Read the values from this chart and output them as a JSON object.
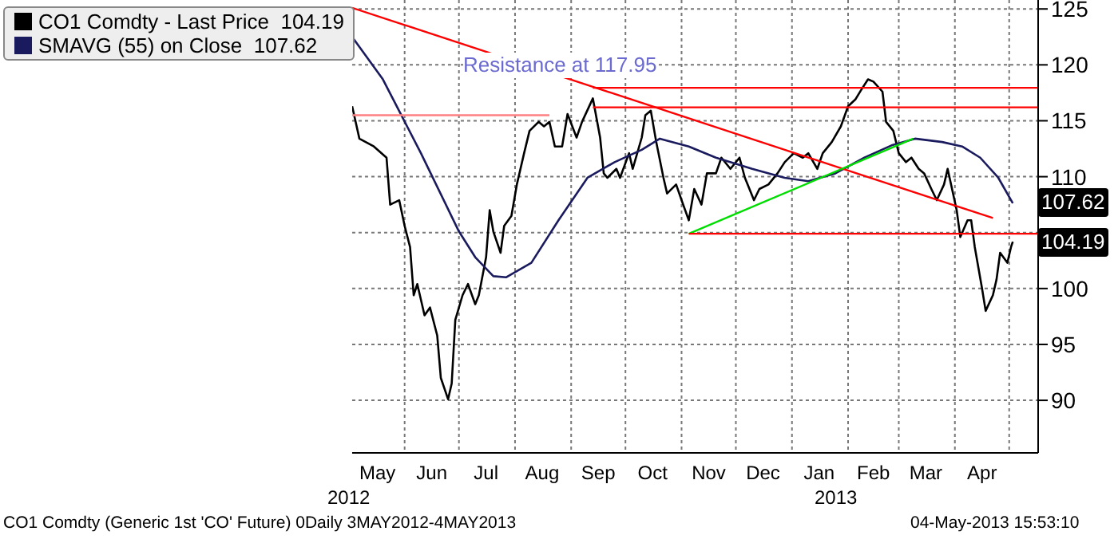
{
  "chart_data": {
    "type": "line",
    "legend": "top left",
    "grid": true,
    "xlim": [
      "2012-05-03",
      "2013-05-17"
    ],
    "xticks": [
      {
        "value": "2012-05-17",
        "label": "May"
      },
      {
        "value": "2012-06-01",
        "label": null
      },
      {
        "value": "2012-06-16",
        "label": "Jun"
      },
      {
        "value": "2012-07-01",
        "label": null
      },
      {
        "value": "2012-07-16",
        "label": "Jul"
      },
      {
        "value": "2012-08-01",
        "label": null
      },
      {
        "value": "2012-08-16",
        "label": "Aug"
      },
      {
        "value": "2012-09-01",
        "label": null
      },
      {
        "value": "2012-09-16",
        "label": "Sep"
      },
      {
        "value": "2012-10-01",
        "label": null
      },
      {
        "value": "2012-10-16",
        "label": "Oct"
      },
      {
        "value": "2012-11-01",
        "label": null
      },
      {
        "value": "2012-11-16",
        "label": "Nov"
      },
      {
        "value": "2012-12-01",
        "label": null
      },
      {
        "value": "2012-12-16",
        "label": "Dec"
      },
      {
        "value": "2013-01-01",
        "label": null
      },
      {
        "value": "2013-01-16",
        "label": "Jan"
      },
      {
        "value": "2013-02-01",
        "label": null
      },
      {
        "value": "2013-02-15",
        "label": "Feb"
      },
      {
        "value": "2013-03-01",
        "label": null
      },
      {
        "value": "2013-03-16",
        "label": "Mar"
      },
      {
        "value": "2013-04-01",
        "label": null
      },
      {
        "value": "2013-04-16",
        "label": "Apr"
      },
      {
        "value": "2013-05-01",
        "label": null
      }
    ],
    "ylim": [
      85.3,
      125.8
    ],
    "yticks": [
      90,
      95,
      100,
      {
        "value": 105,
        "label": null
      },
      110,
      115,
      120,
      125
    ],
    "series": [
      {
        "name": "CO1 Comdty - Last Price  104.19",
        "color": "#000000",
        "x": [
          "2012-05-03",
          "2012-05-07",
          "2012-05-15",
          "2012-05-22",
          "2012-05-24",
          "2012-05-29",
          "2012-06-01",
          "2012-06-04",
          "2012-06-06",
          "2012-06-08",
          "2012-06-12",
          "2012-06-15",
          "2012-06-19",
          "2012-06-21",
          "2012-06-25",
          "2012-06-27",
          "2012-06-29",
          "2012-07-03",
          "2012-07-06",
          "2012-07-10",
          "2012-07-12",
          "2012-07-16",
          "2012-07-18",
          "2012-07-20",
          "2012-07-24",
          "2012-07-26",
          "2012-07-30",
          "2012-08-02",
          "2012-08-06",
          "2012-08-09",
          "2012-08-14",
          "2012-08-17",
          "2012-08-20",
          "2012-08-23",
          "2012-08-27",
          "2012-08-30",
          "2012-09-04",
          "2012-09-07",
          "2012-09-13",
          "2012-09-17",
          "2012-09-19",
          "2012-09-21",
          "2012-09-26",
          "2012-09-28",
          "2012-10-03",
          "2012-10-05",
          "2012-10-10",
          "2012-10-12",
          "2012-10-15",
          "2012-10-18",
          "2012-10-22",
          "2012-10-24",
          "2012-10-29",
          "2012-11-01",
          "2012-11-05",
          "2012-11-08",
          "2012-11-12",
          "2012-11-15",
          "2012-11-20",
          "2012-11-23",
          "2012-11-28",
          "2012-12-03",
          "2012-12-06",
          "2012-12-11",
          "2012-12-14",
          "2012-12-19",
          "2012-12-24",
          "2012-12-28",
          "2013-01-02",
          "2013-01-07",
          "2013-01-10",
          "2013-01-15",
          "2013-01-18",
          "2013-01-23",
          "2013-01-28",
          "2013-02-01",
          "2013-02-05",
          "2013-02-08",
          "2013-02-12",
          "2013-02-15",
          "2013-02-20",
          "2013-02-22",
          "2013-02-26",
          "2013-03-01",
          "2013-03-05",
          "2013-03-08",
          "2013-03-12",
          "2013-03-15",
          "2013-03-19",
          "2013-03-22",
          "2013-03-26",
          "2013-03-28",
          "2013-04-02",
          "2013-04-04",
          "2013-04-08",
          "2013-04-10",
          "2013-04-12",
          "2013-04-16",
          "2013-04-18",
          "2013-04-22",
          "2013-04-24",
          "2013-04-26",
          "2013-04-30",
          "2013-05-02",
          "2013-05-03"
        ],
        "values": [
          116.3,
          113.4,
          112.7,
          111.7,
          107.5,
          107.9,
          105.6,
          103.7,
          99.4,
          100.4,
          97.6,
          98.3,
          95.8,
          92,
          90.1,
          91.5,
          97.2,
          99.4,
          100.4,
          98.6,
          99.4,
          102.8,
          107,
          105.1,
          103.2,
          105.6,
          106.5,
          109.3,
          112.1,
          114.1,
          114.9,
          114.5,
          114.9,
          112.7,
          112.7,
          115.6,
          113.5,
          114.9,
          117,
          113.5,
          110.3,
          109.9,
          110.7,
          109.9,
          112.1,
          110.7,
          113.5,
          115.5,
          115.9,
          113.1,
          109.9,
          108.5,
          109.3,
          107.9,
          106.1,
          108.9,
          107.5,
          110.3,
          110.3,
          111.7,
          110.7,
          111.7,
          109.9,
          107.9,
          108.9,
          109.3,
          110.3,
          111.3,
          112.1,
          111.7,
          112.1,
          110.7,
          112.1,
          113.1,
          114.5,
          116.3,
          116.9,
          117.7,
          118.7,
          118.5,
          117.6,
          114.9,
          114.1,
          112.1,
          111.3,
          111.7,
          110.7,
          110.3,
          108.9,
          107.9,
          109.3,
          110.7,
          107,
          104.6,
          106.1,
          106.1,
          103.7,
          100,
          98,
          99.4,
          100.8,
          103.2,
          102.3,
          103.7,
          104.19
        ]
      },
      {
        "name": "SMAVG (55) on Close  107.62",
        "color": "#1a1a5e",
        "x": [
          "2012-05-03",
          "2012-05-20",
          "2012-06-10",
          "2012-07-01",
          "2012-07-10",
          "2012-07-20",
          "2012-07-27",
          "2012-08-10",
          "2012-08-25",
          "2012-09-10",
          "2012-09-25",
          "2012-10-10",
          "2012-10-20",
          "2012-11-05",
          "2012-11-20",
          "2012-12-10",
          "2012-12-28",
          "2013-01-10",
          "2013-01-25",
          "2013-02-10",
          "2013-02-25",
          "2013-03-10",
          "2013-03-25",
          "2013-04-05",
          "2013-04-15",
          "2013-04-25",
          "2013-05-03"
        ],
        "values": [
          122.5,
          118.7,
          112.1,
          105.1,
          102.8,
          101.1,
          101,
          102.3,
          106.1,
          109.9,
          111.3,
          112.4,
          113.4,
          112.7,
          111.7,
          110.7,
          109.9,
          109.6,
          110.3,
          111.7,
          112.8,
          113.4,
          113.1,
          112.7,
          111.7,
          109.9,
          107.62
        ]
      },
      {
        "color": "#ff0000",
        "x": [
          "2012-05-03",
          "2013-04-22"
        ],
        "values": [
          125.1,
          106.3
        ]
      },
      {
        "color": "#00dd00",
        "x": [
          "2012-11-05",
          "2013-03-09"
        ],
        "values": [
          104.9,
          113.4
        ]
      },
      {
        "color": "#ff8080",
        "x": [
          "2012-05-03",
          "2012-08-20"
        ],
        "values": [
          115.5,
          115.5
        ]
      },
      {
        "color": "#ff0000",
        "x": [
          "2012-09-13",
          "2013-05-17"
        ],
        "values": [
          117.95,
          117.95
        ]
      },
      {
        "color": "#ff0000",
        "x": [
          "2012-09-13",
          "2013-05-17"
        ],
        "values": [
          116.2,
          116.2
        ]
      },
      {
        "color": "#ff0000",
        "x": [
          "2012-11-05",
          "2013-05-17"
        ],
        "values": [
          104.9,
          104.9
        ]
      }
    ],
    "annotations": [
      "Resistance at 117.95",
      "2012",
      "2013",
      "CO1 Comdty (Generic 1st 'CO' Future) 0Daily 3MAY2012-4MAY2013",
      "04-May-2013 15:53:10",
      {
        "text": "107.62",
        "x": "2013-05-03",
        "y": 107.62
      },
      {
        "text": "104.19",
        "x": "2013-05-03",
        "y": 104.19
      }
    ]
  }
}
